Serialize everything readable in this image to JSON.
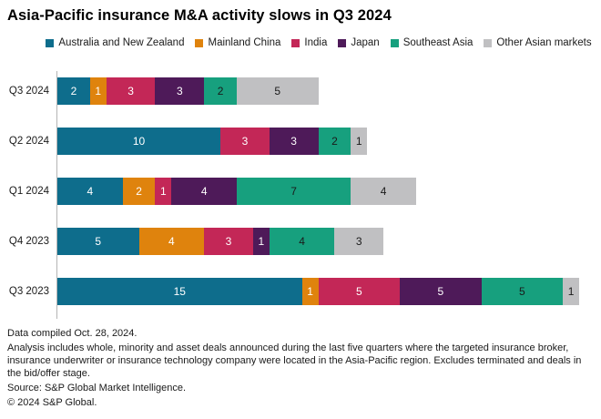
{
  "title": "Asia-Pacific insurance M&A activity slows in Q3 2024",
  "chart_data": {
    "type": "bar",
    "orientation": "horizontal",
    "stacked": true,
    "value_labels": true,
    "legend_position": "top",
    "xlim": [
      0,
      32.5
    ],
    "categories": [
      "Q3 2024",
      "Q2 2024",
      "Q1 2024",
      "Q4 2023",
      "Q3 2023"
    ],
    "series": [
      {
        "name": "Australia and New Zealand",
        "color": "#0e6d8c",
        "label_color": "#ffffff",
        "values": [
          2,
          10,
          4,
          5,
          15
        ]
      },
      {
        "name": "Mainland China",
        "color": "#df830d",
        "label_color": "#ffffff",
        "values": [
          1,
          0,
          2,
          4,
          1
        ]
      },
      {
        "name": "India",
        "color": "#c32757",
        "label_color": "#ffffff",
        "values": [
          3,
          3,
          1,
          3,
          5
        ]
      },
      {
        "name": "Japan",
        "color": "#4e1a59",
        "label_color": "#ffffff",
        "values": [
          3,
          3,
          4,
          1,
          5
        ]
      },
      {
        "name": "Southeast Asia",
        "color": "#17a07e",
        "label_color": "#1a1a1a",
        "values": [
          2,
          2,
          7,
          4,
          5
        ]
      },
      {
        "name": "Other Asian markets",
        "color": "#c0c0c2",
        "label_color": "#1a1a1a",
        "values": [
          5,
          1,
          4,
          3,
          1
        ]
      }
    ],
    "totals": [
      16,
      19,
      22,
      20,
      32
    ]
  },
  "footer": {
    "compiled": "Data compiled Oct. 28, 2024.",
    "analysis": "Analysis includes whole, minority and asset deals announced during the last five quarters where the targeted insurance broker, insurance underwriter or insurance technology company were located in the Asia-Pacific region. Excludes terminated and deals in the bid/offer stage.",
    "source": "Source: S&P Global Market Intelligence.",
    "copyright": "© 2024 S&P Global."
  },
  "colors": {
    "background": "#ffffff",
    "axis_line": "#b5b5b5",
    "text": "#1a1a1a"
  }
}
